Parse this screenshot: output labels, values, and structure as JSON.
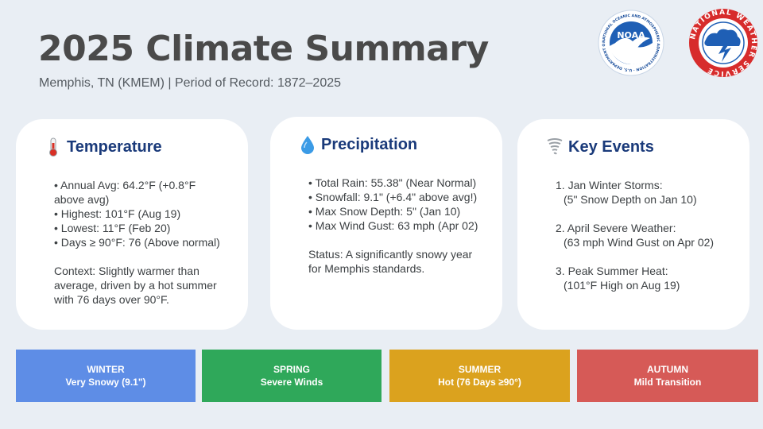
{
  "header": {
    "title": "2025 Climate Summary",
    "subtitle": "Memphis, TN (KMEM) | Period of Record: 1872–2025"
  },
  "logos": {
    "noaa": {
      "icon": "noaa-logo",
      "text": "NOAA",
      "ring_text": "NATIONAL OCEANIC AND ATMOSPHERIC ADMINISTRATION · U.S. DEPARTMENT OF COMMERCE"
    },
    "nws": {
      "icon": "nws-logo",
      "ring_text": "NATIONAL WEATHER SERVICE"
    }
  },
  "cards": {
    "temperature": {
      "icon": "thermometer-icon",
      "title": "Temperature",
      "bullets": [
        "• Annual Avg: 64.2°F (+0.8°F above avg)",
        "• Highest: 101°F (Aug 19)",
        "• Lowest: 11°F (Feb 20)",
        "• Days ≥ 90°F: 76 (Above normal)"
      ],
      "context": "Context: Slightly warmer than average, driven by a hot summer with 76 days over 90°F."
    },
    "precipitation": {
      "icon": "droplet-icon",
      "title": "Precipitation",
      "bullets": [
        "• Total Rain: 55.38\" (Near Normal)",
        "• Snowfall: 9.1\" (+6.4\" above avg!)",
        "• Max Snow Depth: 5\" (Jan 10)",
        "• Max Wind Gust: 63 mph (Apr 02)"
      ],
      "status": "Status: A significantly snowy year for Memphis standards."
    },
    "events": {
      "icon": "tornado-icon",
      "title": "Key Events",
      "items": [
        {
          "heading": "1. Jan Winter Storms:",
          "detail": "(5\" Snow Depth on Jan 10)"
        },
        {
          "heading": "2. April Severe Weather:",
          "detail": "(63 mph Wind Gust on Apr 02)"
        },
        {
          "heading": "3. Peak Summer Heat:",
          "detail": "(101°F High on Aug 19)"
        }
      ]
    }
  },
  "seasons": [
    {
      "name": "WINTER",
      "desc": "Very Snowy (9.1\")",
      "color": "#5e8de6"
    },
    {
      "name": "SPRING",
      "desc": "Severe Winds",
      "color": "#2fa85a"
    },
    {
      "name": "SUMMER",
      "desc": "Hot (76 Days ≥90°)",
      "color": "#dba21e"
    },
    {
      "name": "AUTUMN",
      "desc": "Mild Transition",
      "color": "#d65a57"
    }
  ]
}
